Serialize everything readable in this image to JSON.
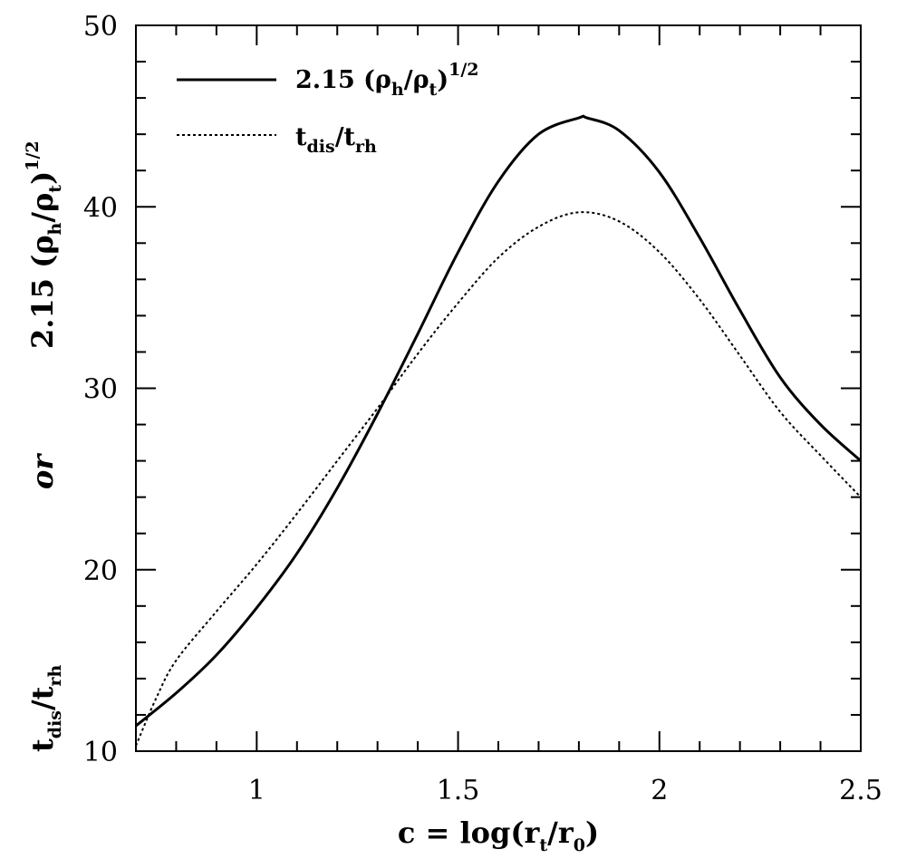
{
  "chart_data": {
    "type": "line",
    "xlim": [
      0.7,
      2.5
    ],
    "ylim": [
      10,
      50
    ],
    "x_ticks": [
      "1",
      "1.5",
      "2",
      "2.5"
    ],
    "y_ticks": [
      "10",
      "20",
      "30",
      "40",
      "50"
    ],
    "xlabel": {
      "prefix": "c  =  log(r",
      "sub1": "t",
      "mid": "/r",
      "sub2": "0",
      "suffix": ")"
    },
    "ylabel": {
      "bottom_main": "t",
      "bottom_sub1": "dis",
      "bottom_slash": "/t",
      "bottom_sub2": "rh",
      "or": "or",
      "top_coef": "2.15 (ρ",
      "top_sub1": "h",
      "top_mid": "/ρ",
      "top_sub2": "t",
      "top_close": ")",
      "top_exp": "1/2"
    },
    "legend": {
      "position": "top-left",
      "entries": [
        {
          "style": "solid",
          "coef": "2.15 (ρ",
          "sub1": "h",
          "mid": "/ρ",
          "sub2": "t",
          "close": ")",
          "exp": "1/2"
        },
        {
          "style": "dotted",
          "main": "t",
          "sub1": "dis",
          "mid": "/t",
          "sub2": "rh"
        }
      ]
    },
    "series": [
      {
        "style": "solid",
        "x": [
          0.7,
          0.8,
          0.9,
          1.0,
          1.1,
          1.2,
          1.3,
          1.4,
          1.5,
          1.6,
          1.7,
          1.8,
          1.82,
          1.9,
          2.0,
          2.1,
          2.2,
          2.3,
          2.4,
          2.5
        ],
        "y": [
          11.4,
          13.2,
          15.3,
          17.9,
          20.9,
          24.5,
          28.6,
          33.0,
          37.5,
          41.4,
          44.0,
          44.9,
          44.9,
          44.2,
          41.9,
          38.3,
          34.3,
          30.6,
          28.0,
          26.0
        ]
      },
      {
        "style": "dotted",
        "x": [
          0.7,
          0.75,
          0.8,
          0.9,
          1.0,
          1.1,
          1.2,
          1.3,
          1.4,
          1.5,
          1.6,
          1.7,
          1.8,
          1.9,
          2.0,
          2.1,
          2.2,
          2.3,
          2.4,
          2.5
        ],
        "y": [
          10.3,
          12.9,
          15.0,
          17.7,
          20.3,
          23.1,
          26.0,
          28.9,
          31.9,
          34.7,
          37.2,
          38.9,
          39.7,
          39.2,
          37.5,
          34.9,
          31.8,
          28.7,
          26.3,
          24.0
        ]
      }
    ]
  }
}
